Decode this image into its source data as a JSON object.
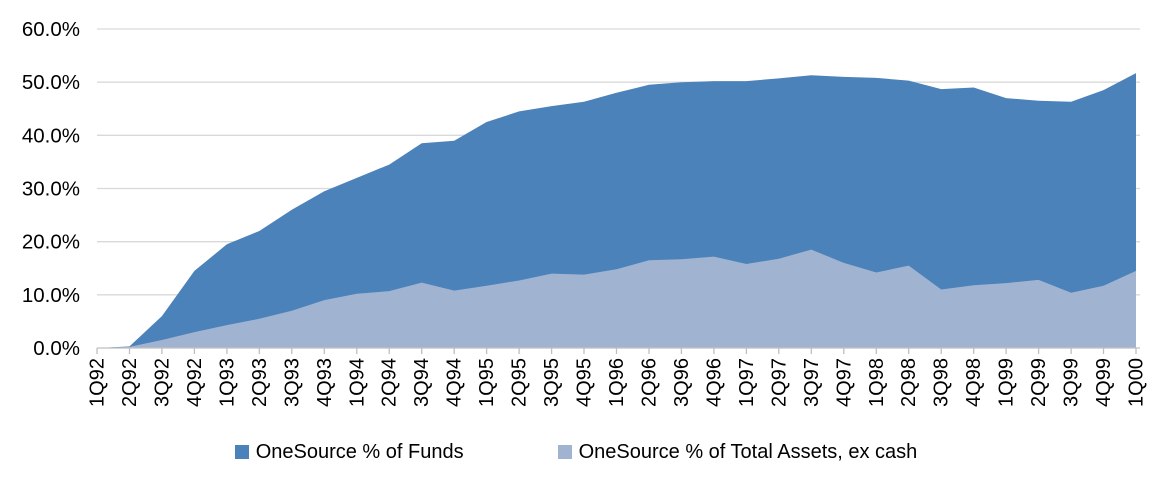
{
  "chart_data": {
    "type": "area",
    "title": "",
    "xlabel": "",
    "ylabel": "",
    "ylim": [
      0,
      60
    ],
    "grid": true,
    "overlap": true,
    "legend_position": "bottom",
    "gridline_color": "#D9D9D9",
    "axis_color": "#BFBFBF",
    "text_color": "#000000",
    "ytick_labels": [
      "0.0%",
      "10.0%",
      "20.0%",
      "30.0%",
      "40.0%",
      "50.0%",
      "60.0%"
    ],
    "categories": [
      "1Q92",
      "2Q92",
      "3Q92",
      "4Q92",
      "1Q93",
      "2Q93",
      "3Q93",
      "4Q93",
      "1Q94",
      "2Q94",
      "3Q94",
      "4Q94",
      "1Q95",
      "2Q95",
      "3Q95",
      "4Q95",
      "1Q96",
      "2Q96",
      "3Q96",
      "4Q96",
      "1Q97",
      "2Q97",
      "3Q97",
      "4Q97",
      "1Q98",
      "2Q98",
      "3Q98",
      "4Q98",
      "1Q99",
      "2Q99",
      "3Q99",
      "4Q99",
      "1Q00"
    ],
    "series": [
      {
        "name": "OneSource % of Funds",
        "color": "#4C82BA",
        "values": [
          0.0,
          0.3,
          6.0,
          14.5,
          19.5,
          22.0,
          26.0,
          29.5,
          32.0,
          34.5,
          38.5,
          39.0,
          42.5,
          44.5,
          45.5,
          46.3,
          48.0,
          49.5,
          50.0,
          50.2,
          50.2,
          50.7,
          51.3,
          51.0,
          50.8,
          50.3,
          48.7,
          49.0,
          47.0,
          46.5,
          46.3,
          48.5,
          51.7
        ]
      },
      {
        "name": "OneSource % of Total Assets, ex cash",
        "color": "#A0B4D2",
        "values": [
          0.0,
          0.2,
          1.5,
          3.0,
          4.3,
          5.5,
          7.0,
          9.0,
          10.2,
          10.7,
          12.3,
          10.8,
          11.7,
          12.7,
          14.0,
          13.8,
          14.8,
          16.5,
          16.7,
          17.2,
          15.8,
          16.8,
          18.5,
          16.0,
          14.2,
          15.5,
          11.0,
          11.8,
          12.2,
          12.8,
          10.4,
          11.7,
          14.5
        ]
      }
    ]
  }
}
